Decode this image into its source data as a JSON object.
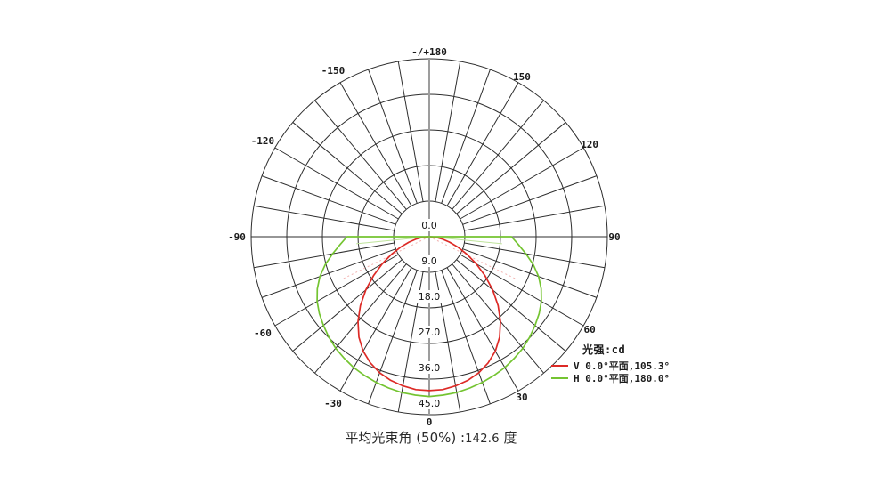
{
  "chart_data": {
    "type": "polar_photometric",
    "radial_axis": {
      "unit": "cd",
      "max": 45,
      "tick_values": [
        0,
        9,
        18,
        27,
        36,
        45
      ],
      "tick_labels": [
        "0.0",
        "9.0",
        "18.0",
        "27.0",
        "36.0",
        "45.0"
      ]
    },
    "angle_axis": {
      "spoke_step_deg": 10,
      "label_step_deg": 30,
      "labels": [
        {
          "angle": 180,
          "text": "-/+180"
        },
        {
          "angle": 150,
          "text": "150"
        },
        {
          "angle": 120,
          "text": "120"
        },
        {
          "angle": 90,
          "text": "90"
        },
        {
          "angle": 60,
          "text": "60"
        },
        {
          "angle": 30,
          "text": "30"
        },
        {
          "angle": 0,
          "text": "0"
        },
        {
          "angle": -30,
          "text": "-30"
        },
        {
          "angle": -60,
          "text": "-60"
        },
        {
          "angle": -90,
          "text": "-90"
        },
        {
          "angle": -120,
          "text": "-120"
        },
        {
          "angle": -150,
          "text": "-150"
        }
      ]
    },
    "series": [
      {
        "name": "V 0.0°平面,105.3°",
        "plane": "V",
        "beam_angle_deg": 105.3,
        "color": "#dd2a26",
        "closed": false,
        "angles": [
          -90,
          -85,
          -80,
          -75,
          -70,
          -65,
          -60,
          -55,
          -50,
          -45,
          -40,
          -35,
          -30,
          -25,
          -20,
          -15,
          -10,
          -5,
          0,
          5,
          10,
          15,
          20,
          25,
          30,
          35,
          40,
          45,
          50,
          55,
          60,
          65,
          70,
          75,
          80,
          85,
          90
        ],
        "values": [
          0.3,
          1.6,
          3.3,
          5.3,
          7.7,
          10.5,
          13.7,
          17.2,
          20.9,
          24.6,
          28.0,
          31.0,
          33.4,
          35.2,
          36.6,
          37.6,
          38.3,
          38.8,
          38.9,
          38.8,
          38.3,
          37.6,
          36.6,
          35.2,
          33.4,
          31.0,
          28.0,
          24.6,
          20.9,
          17.2,
          13.7,
          10.5,
          7.7,
          5.3,
          3.3,
          1.6,
          0.3
        ]
      },
      {
        "name": "H 0.0°平面,180.0°",
        "plane": "H",
        "beam_angle_deg": 180.0,
        "color": "#74c431",
        "closed": true,
        "angles": [
          -90,
          -85,
          -80,
          -75,
          -70,
          -65,
          -60,
          -55,
          -50,
          -45,
          -40,
          -35,
          -30,
          -25,
          -20,
          -15,
          -10,
          -5,
          0,
          5,
          10,
          15,
          20,
          25,
          30,
          35,
          40,
          45,
          50,
          55,
          60,
          65,
          70,
          75,
          80,
          85,
          90
        ],
        "values": [
          20.8,
          22.6,
          24.8,
          27.2,
          29.4,
          31.2,
          32.7,
          33.9,
          34.9,
          35.9,
          36.8,
          37.5,
          38.2,
          38.7,
          39.2,
          39.6,
          40.0,
          40.2,
          40.4,
          40.2,
          40.0,
          39.6,
          39.2,
          38.7,
          38.2,
          37.5,
          36.8,
          35.9,
          34.9,
          33.9,
          32.7,
          31.2,
          29.4,
          27.2,
          24.8,
          22.6,
          20.8
        ]
      }
    ],
    "beam_markers": [
      {
        "name": "v-half-intensity-marker",
        "angle_deg": 64,
        "length_cd": 24.5,
        "color": "#f2b2b0",
        "dashed": true
      },
      {
        "name": "h-half-intensity-marker",
        "angle_deg": 84.5,
        "length_cd": 18.5,
        "color": "#bfe39c",
        "dashed": false
      }
    ],
    "grid_color": "#2e2e2e",
    "vertical_axis_color": "#9d9d9d"
  },
  "legend": {
    "title": "光强:cd",
    "entries": [
      {
        "swatch_color": "#dd2a26",
        "label": "V 0.0°平面,105.3°"
      },
      {
        "swatch_color": "#74c431",
        "label": "H 0.0°平面,180.0°"
      }
    ]
  },
  "caption": {
    "prefix": "平均光束角 (50%) :",
    "value": "142.6",
    "unit": " 度"
  }
}
